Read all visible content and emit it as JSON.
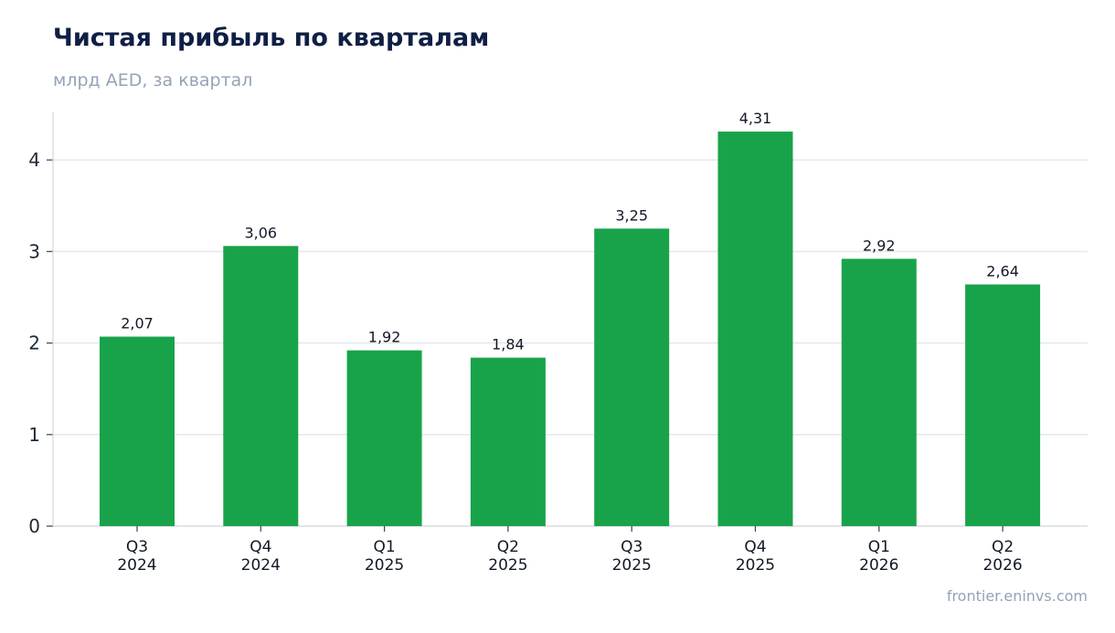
{
  "header": {
    "title": "Чистая прибыль по кварталам",
    "subtitle": "млрд AED, за квартал"
  },
  "footer": {
    "source": "frontier.eninvs.com"
  },
  "chart_data": {
    "type": "bar",
    "title": "Чистая прибыль по кварталам",
    "subtitle": "млрд AED, за квартал",
    "categories": [
      [
        "Q3",
        "2024"
      ],
      [
        "Q4",
        "2024"
      ],
      [
        "Q1",
        "2025"
      ],
      [
        "Q2",
        "2025"
      ],
      [
        "Q3",
        "2025"
      ],
      [
        "Q4",
        "2025"
      ],
      [
        "Q1",
        "2026"
      ],
      [
        "Q2",
        "2026"
      ]
    ],
    "values": [
      2.07,
      3.06,
      1.92,
      1.84,
      3.25,
      4.31,
      2.92,
      2.64
    ],
    "value_labels": [
      "2,07",
      "3,06",
      "1,92",
      "1,84",
      "3,25",
      "4,31",
      "2,92",
      "2,64"
    ],
    "ylim": [
      0,
      4.52
    ],
    "yticks": [
      0,
      1,
      2,
      3,
      4
    ],
    "xlabel": "",
    "ylabel": "",
    "grid": "horizontal",
    "bar_color": "#18a34a"
  }
}
